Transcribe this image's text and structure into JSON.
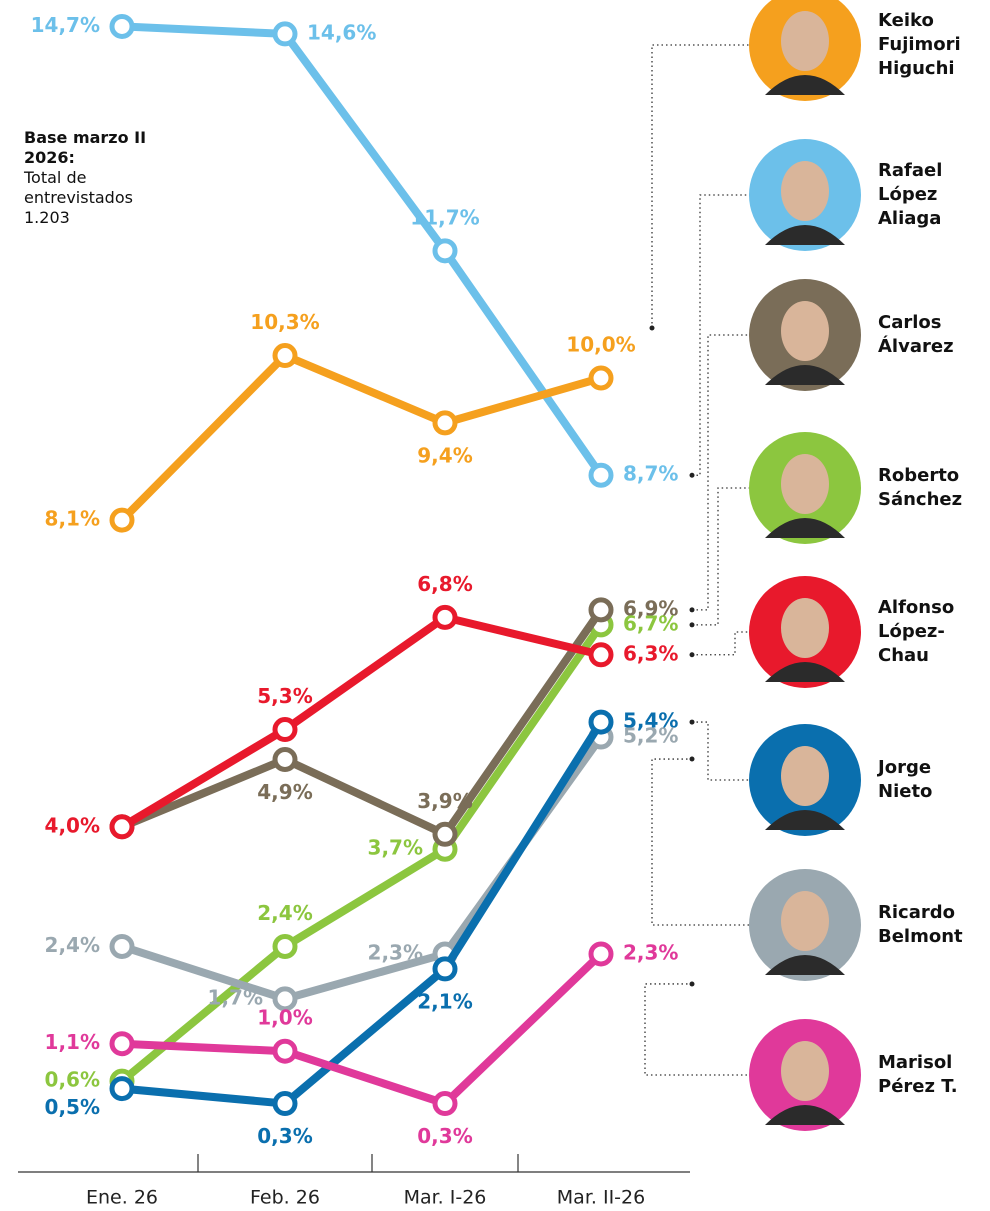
{
  "chart_data": {
    "type": "line",
    "note": {
      "title": "Base marzo II 2026:",
      "text": "Total de entrevistados 1.203"
    },
    "categories": [
      "Ene. 26",
      "Feb. 26",
      "Mar. I-26",
      "Mar. II-26"
    ],
    "ylim": [
      0,
      15
    ],
    "series": [
      {
        "name": "Keiko Fujimori Higuchi",
        "color": "#f5a01e",
        "values": [
          8.1,
          10.3,
          9.4,
          10.0
        ],
        "value_labels": [
          "8,1%",
          "10,3%",
          "9,4%",
          "10,0%"
        ]
      },
      {
        "name": "Rafael López Aliaga",
        "color": "#6cc0ea",
        "values": [
          14.7,
          14.6,
          11.7,
          8.7
        ],
        "value_labels": [
          "14,7%",
          "14,6%",
          "11,7%",
          "8,7%"
        ]
      },
      {
        "name": "Carlos Álvarez",
        "color": "#7a6d58",
        "values": [
          4.0,
          4.9,
          3.9,
          6.9
        ],
        "value_labels": [
          null,
          "4,9%",
          "3,9%",
          "6,9%"
        ]
      },
      {
        "name": "Roberto Sánchez",
        "color": "#8cc63f",
        "values": [
          0.6,
          2.4,
          3.7,
          6.7
        ],
        "value_labels": [
          "0,6%",
          "2,4%",
          "3,7%",
          "6,7%"
        ]
      },
      {
        "name": "Alfonso López-Chau",
        "color": "#e8192c",
        "values": [
          4.0,
          5.3,
          6.8,
          6.3
        ],
        "value_labels": [
          "4,0%",
          "5,3%",
          "6,8%",
          "6,3%"
        ]
      },
      {
        "name": "Jorge Nieto",
        "color": "#0a6fae",
        "values": [
          0.5,
          0.3,
          2.1,
          5.4
        ],
        "value_labels": [
          "0,5%",
          "0,3%",
          "2,1%",
          "5,4%"
        ]
      },
      {
        "name": "Ricardo Belmont",
        "color": "#9aa8b0",
        "values": [
          2.4,
          1.7,
          2.3,
          5.2
        ],
        "value_labels": [
          "2,4%",
          "1,7%",
          "2,3%",
          "5,2%"
        ]
      },
      {
        "name": "Marisol Pérez T.",
        "color": "#e0399a",
        "values": [
          1.1,
          1.0,
          0.3,
          2.3
        ],
        "value_labels": [
          "1,1%",
          "1,0%",
          "0,3%",
          "2,3%"
        ]
      }
    ]
  }
}
